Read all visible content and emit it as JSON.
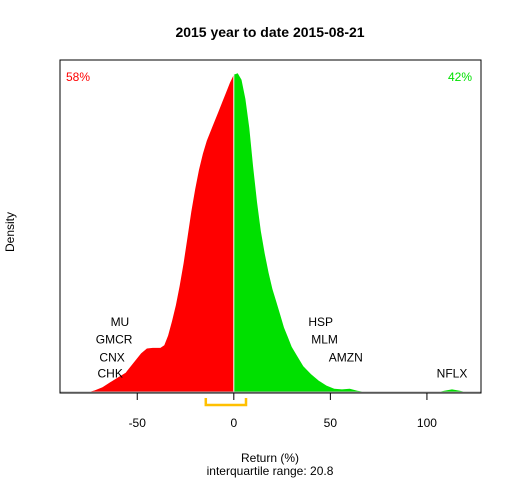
{
  "chart_data": {
    "type": "area",
    "title": "2015  year to date 2015-08-21",
    "xlabel": "Return (%)",
    "xlabel_sub": "interquartile range: 20.8",
    "ylabel": "Density",
    "xlim": [
      -90,
      128
    ],
    "ylim": [
      0,
      1.0
    ],
    "x_ticks": [
      -50,
      0,
      50,
      100
    ],
    "x_tick_labels": [
      "-50",
      "0",
      "50",
      "100"
    ],
    "split_at": 0,
    "negative_share_label": "58%",
    "positive_share_label": "42%",
    "negative_color": "#ff0000",
    "positive_color": "#00e000",
    "iqr_bracket": {
      "low": -14.5,
      "high": 6.3,
      "color": "#ffc000"
    },
    "density": [
      {
        "x": -75,
        "y": 0.0
      },
      {
        "x": -72,
        "y": 0.005
      },
      {
        "x": -68,
        "y": 0.015
      },
      {
        "x": -64,
        "y": 0.03
      },
      {
        "x": -60,
        "y": 0.045
      },
      {
        "x": -56,
        "y": 0.06
      },
      {
        "x": -52,
        "y": 0.09
      },
      {
        "x": -48,
        "y": 0.12
      },
      {
        "x": -45,
        "y": 0.135
      },
      {
        "x": -42,
        "y": 0.137
      },
      {
        "x": -38,
        "y": 0.137
      },
      {
        "x": -36,
        "y": 0.145
      },
      {
        "x": -34,
        "y": 0.175
      },
      {
        "x": -32,
        "y": 0.22
      },
      {
        "x": -30,
        "y": 0.27
      },
      {
        "x": -28,
        "y": 0.33
      },
      {
        "x": -26,
        "y": 0.4
      },
      {
        "x": -24,
        "y": 0.48
      },
      {
        "x": -22,
        "y": 0.56
      },
      {
        "x": -20,
        "y": 0.63
      },
      {
        "x": -18,
        "y": 0.69
      },
      {
        "x": -16,
        "y": 0.74
      },
      {
        "x": -14,
        "y": 0.78
      },
      {
        "x": -12,
        "y": 0.81
      },
      {
        "x": -10,
        "y": 0.84
      },
      {
        "x": -8,
        "y": 0.87
      },
      {
        "x": -6,
        "y": 0.9
      },
      {
        "x": -4,
        "y": 0.93
      },
      {
        "x": -2,
        "y": 0.96
      },
      {
        "x": 0,
        "y": 0.985
      },
      {
        "x": 2,
        "y": 0.99
      },
      {
        "x": 4,
        "y": 0.97
      },
      {
        "x": 6,
        "y": 0.91
      },
      {
        "x": 8,
        "y": 0.82
      },
      {
        "x": 10,
        "y": 0.7
      },
      {
        "x": 12,
        "y": 0.59
      },
      {
        "x": 14,
        "y": 0.5
      },
      {
        "x": 16,
        "y": 0.43
      },
      {
        "x": 18,
        "y": 0.37
      },
      {
        "x": 20,
        "y": 0.32
      },
      {
        "x": 22,
        "y": 0.28
      },
      {
        "x": 24,
        "y": 0.24
      },
      {
        "x": 26,
        "y": 0.2
      },
      {
        "x": 28,
        "y": 0.17
      },
      {
        "x": 30,
        "y": 0.14
      },
      {
        "x": 33,
        "y": 0.11
      },
      {
        "x": 36,
        "y": 0.08
      },
      {
        "x": 40,
        "y": 0.055
      },
      {
        "x": 44,
        "y": 0.035
      },
      {
        "x": 48,
        "y": 0.02
      },
      {
        "x": 52,
        "y": 0.01
      },
      {
        "x": 56,
        "y": 0.008
      },
      {
        "x": 60,
        "y": 0.01
      },
      {
        "x": 64,
        "y": 0.004
      },
      {
        "x": 68,
        "y": 0.0
      },
      {
        "x": 106,
        "y": 0.0
      },
      {
        "x": 109,
        "y": 0.004
      },
      {
        "x": 113,
        "y": 0.008
      },
      {
        "x": 117,
        "y": 0.004
      },
      {
        "x": 120,
        "y": 0.0
      }
    ],
    "annotations": [
      {
        "text": "MU",
        "x": -59,
        "y": 0.205,
        "anchor": "middle"
      },
      {
        "text": "GMCR",
        "x": -62,
        "y": 0.15,
        "anchor": "middle"
      },
      {
        "text": "CNX",
        "x": -63,
        "y": 0.095,
        "anchor": "middle"
      },
      {
        "text": "CHK",
        "x": -64,
        "y": 0.045,
        "anchor": "middle"
      },
      {
        "text": "HSP",
        "x": 45,
        "y": 0.205,
        "anchor": "middle"
      },
      {
        "text": "MLM",
        "x": 47,
        "y": 0.15,
        "anchor": "middle"
      },
      {
        "text": "AMZN",
        "x": 58,
        "y": 0.095,
        "anchor": "middle"
      },
      {
        "text": "NFLX",
        "x": 113,
        "y": 0.045,
        "anchor": "middle"
      }
    ]
  }
}
